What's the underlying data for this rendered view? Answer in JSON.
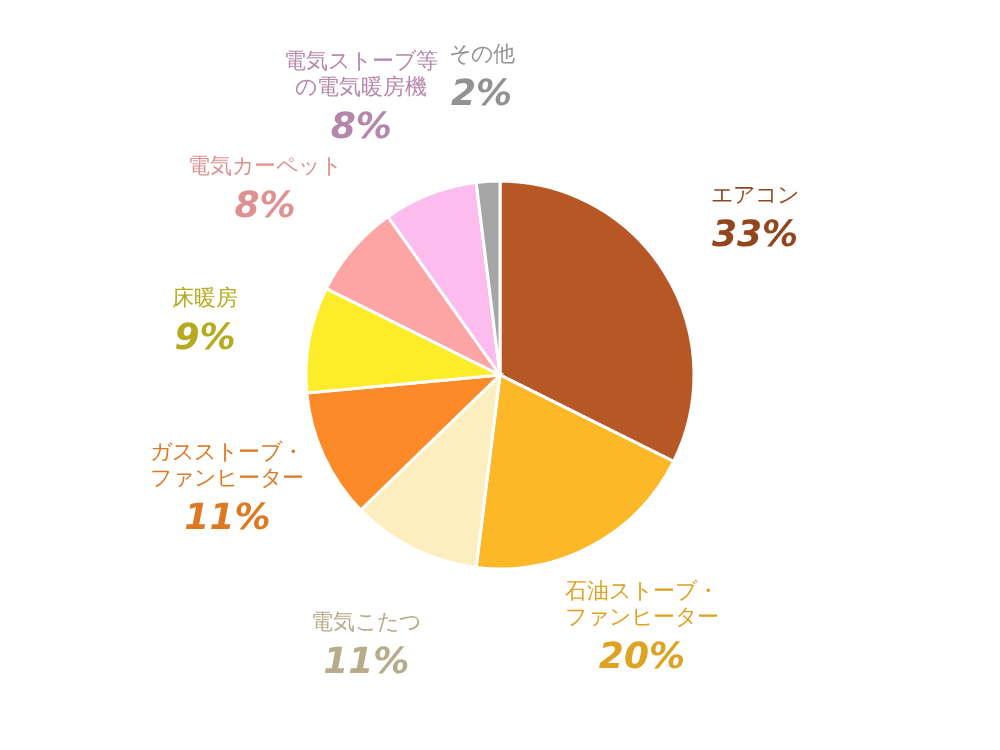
{
  "chart_data": {
    "type": "pie",
    "categories": [
      "エアコン",
      "石油ストーブ・ファンヒーター",
      "電気こたつ",
      "ガスストーブ・ファンヒーター",
      "床暖房",
      "電気カーペット",
      "電気ストーブ等の電気暖房機",
      "その他"
    ],
    "values": [
      33,
      20,
      11,
      11,
      9,
      8,
      8,
      2
    ],
    "value_labels": [
      "33%",
      "20%",
      "11%",
      "11%",
      "9%",
      "8%",
      "8%",
      "2%"
    ],
    "colors": [
      "#b85726",
      "#fdb827",
      "#fdeec0",
      "#fc8a28",
      "#fdec2a",
      "#fca5a4",
      "#fcbcee",
      "#a6a6a6"
    ]
  }
}
